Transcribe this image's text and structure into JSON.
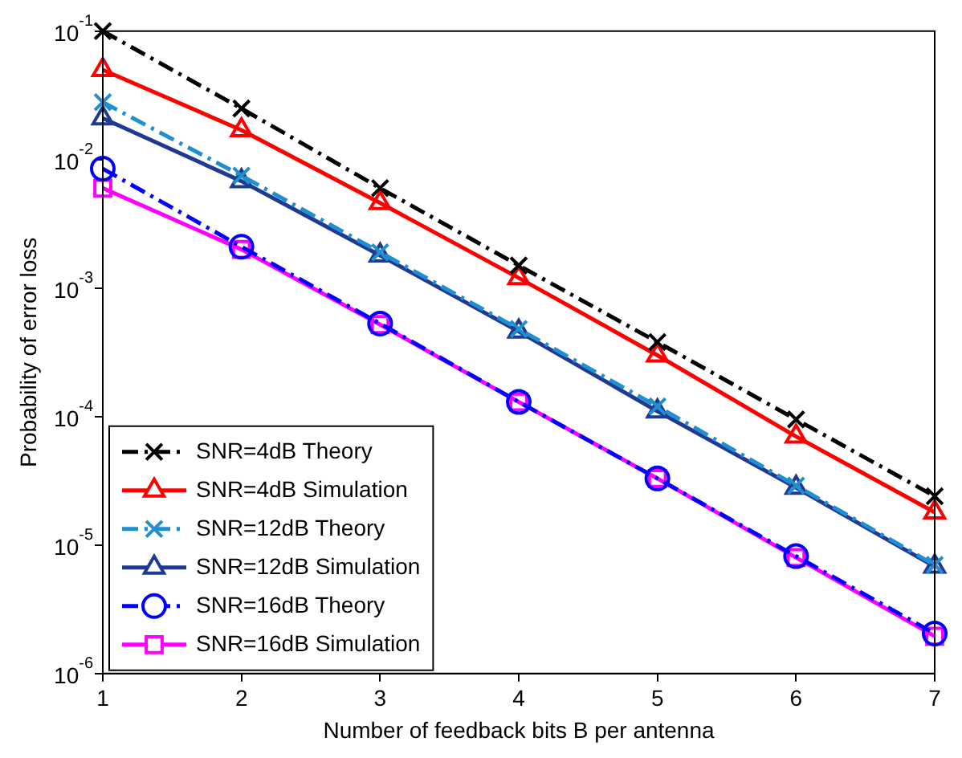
{
  "chart_data": {
    "type": "line",
    "xlabel": "Number of feedback bits B per antenna",
    "ylabel": "Probability of error loss",
    "x": [
      1,
      2,
      3,
      4,
      5,
      6,
      7
    ],
    "series": [
      {
        "name": "SNR=4dB Theory",
        "color": "#000000",
        "marker": "cross",
        "line_style": "dashed",
        "values": [
          0.1,
          0.025,
          0.006,
          0.0015,
          0.00038,
          9.5e-05,
          2.4e-05
        ]
      },
      {
        "name": "SNR=4dB Simulation",
        "color": "#ff0000",
        "marker": "triangle",
        "line_style": "solid",
        "values": [
          0.05,
          0.017,
          0.0046,
          0.0012,
          0.0003,
          7e-05,
          1.8e-05
        ]
      },
      {
        "name": "SNR=12dB Theory",
        "color": "#1f8fcf",
        "marker": "cross",
        "line_style": "dashed",
        "values": [
          0.028,
          0.0075,
          0.0019,
          0.00048,
          0.00012,
          2.9e-05,
          7e-06
        ]
      },
      {
        "name": "SNR=12dB Simulation",
        "color": "#1f3a93",
        "marker": "triangle",
        "line_style": "solid",
        "values": [
          0.021,
          0.0068,
          0.0018,
          0.00046,
          0.00011,
          2.8e-05,
          6.8e-06
        ]
      },
      {
        "name": "SNR=16dB Theory",
        "color": "#0000ff",
        "marker": "circle",
        "line_style": "dashed",
        "values": [
          0.0085,
          0.0021,
          0.00053,
          0.00013,
          3.3e-05,
          8.2e-06,
          2.05e-06
        ]
      },
      {
        "name": "SNR=16dB Simulation",
        "color": "#ff00ff",
        "marker": "square",
        "line_style": "solid",
        "values": [
          0.006,
          0.002,
          0.00052,
          0.00013,
          3.3e-05,
          8e-06,
          1.95e-06
        ]
      }
    ],
    "xlim": [
      1,
      7
    ],
    "xticks": [
      1,
      2,
      3,
      4,
      5,
      6,
      7
    ],
    "ylim": [
      1e-06,
      0.1
    ],
    "log": "y",
    "yticks": [
      {
        "value": 1e-06,
        "label": "10$^{-6}$"
      },
      {
        "value": 1e-05,
        "label": "10$^{-5}$"
      },
      {
        "value": 0.0001,
        "label": "10$^{-4}$"
      },
      {
        "value": 0.001,
        "label": "10$^{-3}$"
      },
      {
        "value": 0.01,
        "label": "10$^{-2}$"
      },
      {
        "value": 0.1,
        "label": "10$^{-1}$"
      }
    ],
    "grid": false,
    "legend": "bottom left"
  }
}
